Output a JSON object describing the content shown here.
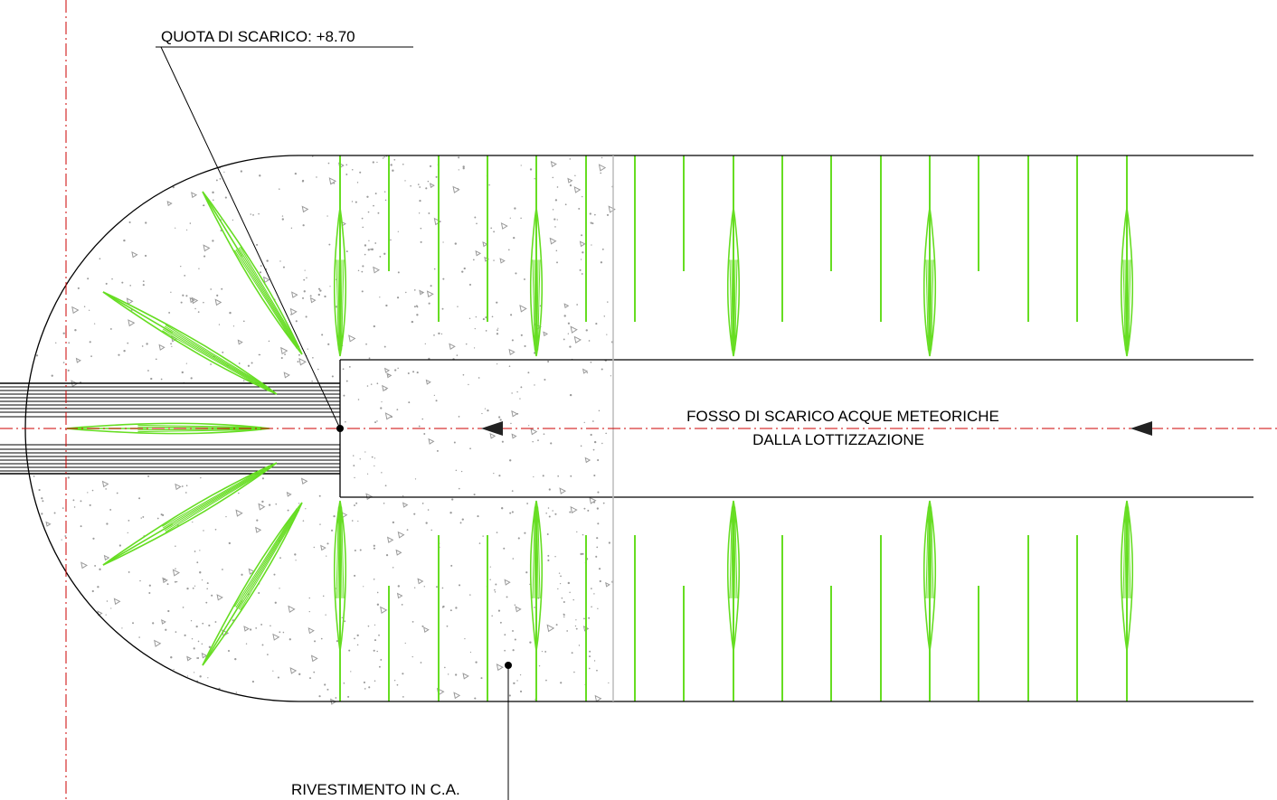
{
  "labels": {
    "quota": "QUOTA DI SCARICO: +8.70",
    "fosso_line1": "FOSSO DI SCARICO ACQUE METEORICHE",
    "fosso_line2": "DALLA LOTTIZZAZIONE",
    "rivestimento": "RIVESTIMENTO IN C.A."
  },
  "colors": {
    "line": "#000000",
    "vegetation": "#66dd22",
    "axis": "#cc0000",
    "concrete_speckle": "#9a9a9a",
    "concrete_edge": "#bbbbbb",
    "arrow": "#222222"
  },
  "icons": {
    "flow_arrow": "flow-direction-arrow-icon",
    "leader_dot": "leader-dot-icon"
  }
}
